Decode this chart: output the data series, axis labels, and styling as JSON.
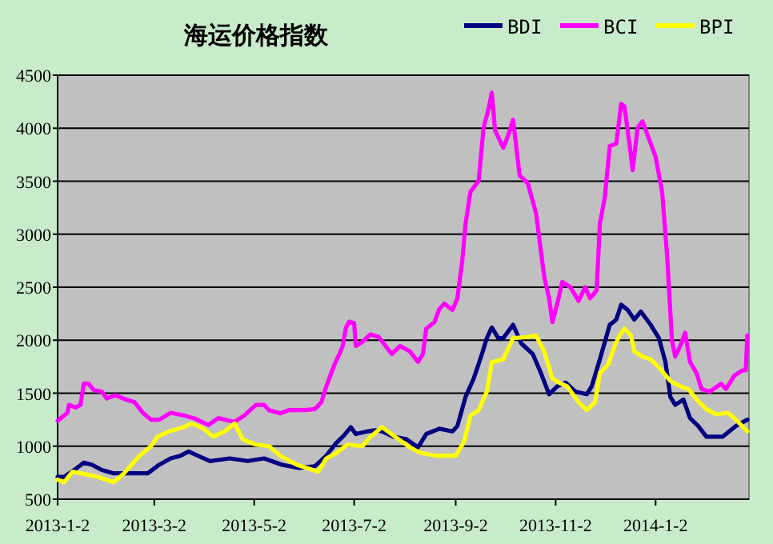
{
  "chart_data": {
    "type": "line",
    "title": "海运价格指数",
    "xlim": [
      "2013-01-02",
      "2014-02-28"
    ],
    "ylim": [
      500,
      4500
    ],
    "yticks": [
      500,
      1000,
      1500,
      2000,
      2500,
      3000,
      3500,
      4000,
      4500
    ],
    "xticks": [
      {
        "value": "2013-01-02",
        "label": "2013-1-2"
      },
      {
        "value": "2013-03-02",
        "label": "2013-3-2"
      },
      {
        "value": "2013-05-02",
        "label": "2013-5-2"
      },
      {
        "value": "2013-07-02",
        "label": "2013-7-2"
      },
      {
        "value": "2013-09-02",
        "label": "2013-9-2"
      },
      {
        "value": "2013-11-02",
        "label": "2013-11-2"
      },
      {
        "value": "2014-01-02",
        "label": "2014-1-2"
      }
    ],
    "grid": "y",
    "legend": "top right",
    "series": [
      {
        "name": "BDI",
        "color": "#000080",
        "x": [
          "2013-01-02",
          "2013-01-06",
          "2013-01-13",
          "2013-01-18",
          "2013-01-23",
          "2013-01-29",
          "2013-02-05",
          "2013-02-18",
          "2013-02-26",
          "2013-03-05",
          "2013-03-12",
          "2013-03-18",
          "2013-03-23",
          "2013-03-30",
          "2013-04-05",
          "2013-04-10",
          "2013-04-17",
          "2013-04-28",
          "2013-05-08",
          "2013-05-19",
          "2013-05-29",
          "2013-06-08",
          "2013-06-15",
          "2013-06-21",
          "2013-06-26",
          "2013-06-30",
          "2013-07-03",
          "2013-07-10",
          "2013-07-15",
          "2013-07-19",
          "2013-07-26",
          "2013-08-03",
          "2013-08-10",
          "2013-08-15",
          "2013-08-23",
          "2013-08-31",
          "2013-09-03",
          "2013-09-08",
          "2013-09-13",
          "2013-09-18",
          "2013-09-21",
          "2013-09-24",
          "2013-09-28",
          "2013-10-01",
          "2013-10-07",
          "2013-10-12",
          "2013-10-19",
          "2013-10-24",
          "2013-10-29",
          "2013-11-03",
          "2013-11-08",
          "2013-11-14",
          "2013-11-21",
          "2013-11-24",
          "2013-11-29",
          "2013-12-05",
          "2013-12-09",
          "2013-12-12",
          "2013-12-16",
          "2013-12-20",
          "2013-12-24",
          "2013-12-30",
          "2014-01-04",
          "2014-01-08",
          "2014-01-11",
          "2014-01-14",
          "2014-01-19",
          "2014-01-23",
          "2014-01-28",
          "2014-02-02",
          "2014-02-12",
          "2014-02-20",
          "2014-02-27"
        ],
        "values": [
          710,
          710,
          785,
          845,
          825,
          775,
          745,
          745,
          745,
          825,
          885,
          910,
          950,
          900,
          860,
          870,
          885,
          860,
          885,
          825,
          795,
          810,
          910,
          1030,
          1105,
          1180,
          1115,
          1140,
          1150,
          1140,
          1090,
          1065,
          990,
          1115,
          1165,
          1140,
          1190,
          1465,
          1640,
          1870,
          2020,
          2120,
          2020,
          2020,
          2145,
          1970,
          1870,
          1690,
          1490,
          1565,
          1600,
          1515,
          1490,
          1565,
          1820,
          2145,
          2195,
          2335,
          2285,
          2195,
          2270,
          2145,
          2020,
          1795,
          1465,
          1390,
          1440,
          1265,
          1190,
          1090,
          1090,
          1190,
          1250
        ]
      },
      {
        "name": "BCI",
        "color": "#ff00ff",
        "x": [
          "2013-01-02",
          "2013-01-08",
          "2013-01-09",
          "2013-01-13",
          "2013-01-16",
          "2013-01-18",
          "2013-01-21",
          "2013-01-24",
          "2013-01-29",
          "2013-02-01",
          "2013-02-06",
          "2013-02-13",
          "2013-02-18",
          "2013-02-23",
          "2013-02-28",
          "2013-03-05",
          "2013-03-12",
          "2013-03-20",
          "2013-03-26",
          "2013-04-04",
          "2013-04-10",
          "2013-04-20",
          "2013-04-26",
          "2013-05-03",
          "2013-05-08",
          "2013-05-11",
          "2013-05-18",
          "2013-05-23",
          "2013-06-02",
          "2013-06-08",
          "2013-06-12",
          "2013-06-15",
          "2013-06-20",
          "2013-06-23",
          "2013-06-25",
          "2013-06-27",
          "2013-06-29",
          "2013-07-02",
          "2013-07-03",
          "2013-07-07",
          "2013-07-12",
          "2013-07-17",
          "2013-07-25",
          "2013-07-30",
          "2013-08-05",
          "2013-08-10",
          "2013-08-13",
          "2013-08-15",
          "2013-08-20",
          "2013-08-23",
          "2013-08-26",
          "2013-08-31",
          "2013-09-03",
          "2013-09-06",
          "2013-09-08",
          "2013-09-11",
          "2013-09-16",
          "2013-09-19",
          "2013-09-22",
          "2013-09-24",
          "2013-09-26",
          "2013-10-01",
          "2013-10-04",
          "2013-10-07",
          "2013-10-11",
          "2013-10-16",
          "2013-10-21",
          "2013-10-26",
          "2013-10-29",
          "2013-10-31",
          "2013-11-03",
          "2013-11-06",
          "2013-11-11",
          "2013-11-16",
          "2013-11-20",
          "2013-11-23",
          "2013-11-27",
          "2013-11-29",
          "2013-12-02",
          "2013-12-05",
          "2013-12-09",
          "2013-12-12",
          "2013-12-14",
          "2013-12-17",
          "2013-12-19",
          "2013-12-22",
          "2013-12-25",
          "2013-12-30",
          "2014-01-02",
          "2014-01-06",
          "2014-01-09",
          "2014-01-12",
          "2014-01-14",
          "2014-01-17",
          "2014-01-20",
          "2014-01-23",
          "2014-01-27",
          "2014-01-30",
          "2014-02-04",
          "2014-02-11",
          "2014-02-14",
          "2014-02-19",
          "2014-02-24",
          "2014-02-26",
          "2014-02-27"
        ],
        "values": [
          1240,
          1315,
          1390,
          1365,
          1390,
          1590,
          1590,
          1530,
          1515,
          1450,
          1480,
          1440,
          1415,
          1315,
          1250,
          1250,
          1315,
          1290,
          1265,
          1200,
          1265,
          1230,
          1290,
          1390,
          1390,
          1340,
          1310,
          1340,
          1340,
          1350,
          1415,
          1565,
          1770,
          1870,
          1945,
          2120,
          2175,
          2160,
          1945,
          1985,
          2055,
          2030,
          1870,
          1945,
          1895,
          1795,
          1870,
          2110,
          2170,
          2295,
          2345,
          2285,
          2395,
          2750,
          3100,
          3400,
          3505,
          4005,
          4180,
          4335,
          3980,
          3815,
          3930,
          4080,
          3555,
          3480,
          3200,
          2600,
          2395,
          2170,
          2345,
          2550,
          2500,
          2370,
          2500,
          2395,
          2470,
          3100,
          3350,
          3830,
          3855,
          4230,
          4205,
          3855,
          3605,
          4005,
          4065,
          3855,
          3730,
          3400,
          2800,
          1995,
          1845,
          1945,
          2070,
          1795,
          1690,
          1540,
          1515,
          1590,
          1540,
          1665,
          1715,
          1715,
          2045
        ]
      },
      {
        "name": "BPI",
        "color": "#ffff00",
        "x": [
          "2013-01-02",
          "2013-01-06",
          "2013-01-11",
          "2013-01-19",
          "2013-01-27",
          "2013-02-05",
          "2013-02-11",
          "2013-02-21",
          "2013-02-28",
          "2013-03-04",
          "2013-03-11",
          "2013-03-19",
          "2013-03-25",
          "2013-04-01",
          "2013-04-07",
          "2013-04-14",
          "2013-04-20",
          "2013-04-25",
          "2013-05-03",
          "2013-05-11",
          "2013-05-18",
          "2013-05-28",
          "2013-06-05",
          "2013-06-10",
          "2013-06-15",
          "2013-06-21",
          "2013-06-28",
          "2013-07-07",
          "2013-07-12",
          "2013-07-19",
          "2013-07-26",
          "2013-08-05",
          "2013-08-11",
          "2013-08-21",
          "2013-09-02",
          "2013-09-07",
          "2013-09-11",
          "2013-09-16",
          "2013-09-21",
          "2013-09-24",
          "2013-10-01",
          "2013-10-04",
          "2013-10-07",
          "2013-10-16",
          "2013-10-21",
          "2013-10-26",
          "2013-10-31",
          "2013-11-04",
          "2013-11-09",
          "2013-11-16",
          "2013-11-21",
          "2013-11-26",
          "2013-11-29",
          "2013-12-04",
          "2013-12-08",
          "2013-12-11",
          "2013-12-14",
          "2013-12-18",
          "2013-12-20",
          "2013-12-25",
          "2013-12-30",
          "2014-01-04",
          "2014-01-11",
          "2014-01-17",
          "2014-01-22",
          "2014-01-27",
          "2014-02-02",
          "2014-02-08",
          "2014-02-15",
          "2014-02-20",
          "2014-02-27"
        ],
        "values": [
          685,
          660,
          760,
          735,
          710,
          660,
          735,
          910,
          1000,
          1090,
          1140,
          1175,
          1215,
          1165,
          1090,
          1140,
          1215,
          1065,
          1015,
          1000,
          910,
          825,
          785,
          760,
          885,
          935,
          1015,
          1000,
          1090,
          1180,
          1100,
          990,
          940,
          910,
          910,
          1040,
          1290,
          1340,
          1515,
          1790,
          1820,
          1920,
          2020,
          2030,
          2045,
          1895,
          1640,
          1600,
          1565,
          1415,
          1340,
          1415,
          1690,
          1770,
          1945,
          2045,
          2110,
          2045,
          1895,
          1845,
          1820,
          1745,
          1615,
          1565,
          1540,
          1440,
          1350,
          1300,
          1315,
          1250,
          1140
        ]
      }
    ]
  }
}
